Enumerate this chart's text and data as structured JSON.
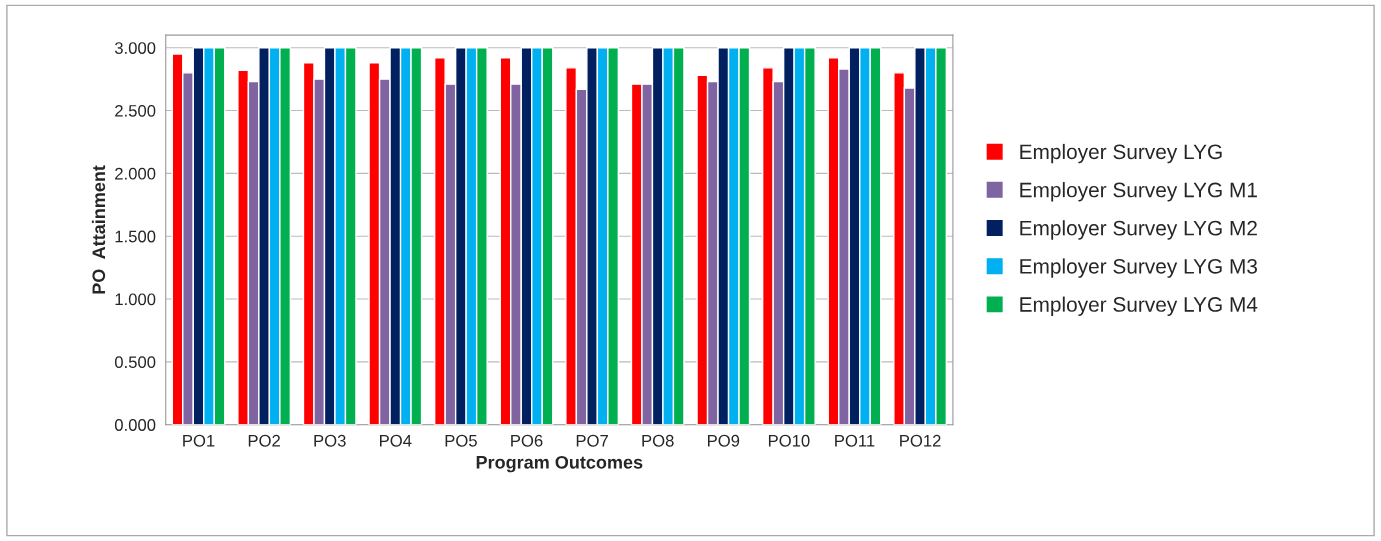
{
  "chart_data": {
    "type": "bar",
    "xlabel": "Program Outcomes",
    "ylabel": "PO  Attainment",
    "categories": [
      "PO1",
      "PO2",
      "PO3",
      "PO4",
      "PO5",
      "PO6",
      "PO7",
      "PO8",
      "PO9",
      "PO10",
      "PO11",
      "PO12"
    ],
    "series": [
      {
        "name": "Employer Survey LYG",
        "color": "#ff0000",
        "values": [
          2.95,
          2.82,
          2.88,
          2.88,
          2.92,
          2.92,
          2.84,
          2.71,
          2.78,
          2.84,
          2.92,
          2.8
        ]
      },
      {
        "name": "Employer Survey LYG M1",
        "color": "#8064a2",
        "values": [
          2.8,
          2.73,
          2.75,
          2.75,
          2.71,
          2.71,
          2.67,
          2.71,
          2.73,
          2.73,
          2.83,
          2.68
        ]
      },
      {
        "name": "Employer Survey LYG M2",
        "color": "#002060",
        "values": [
          3,
          3,
          3,
          3,
          3,
          3,
          3,
          3,
          3,
          3,
          3,
          3
        ]
      },
      {
        "name": "Employer Survey LYG M3",
        "color": "#00b0f0",
        "values": [
          3,
          3,
          3,
          3,
          3,
          3,
          3,
          3,
          3,
          3,
          3,
          3
        ]
      },
      {
        "name": "Employer Survey LYG M4",
        "color": "#00b050",
        "values": [
          3,
          3,
          3,
          3,
          3,
          3,
          3,
          3,
          3,
          3,
          3,
          3
        ]
      }
    ],
    "ylim": [
      0,
      3.1
    ],
    "yticks": [
      {
        "value": 0,
        "label": "0.000"
      },
      {
        "value": 0.5,
        "label": "0.500"
      },
      {
        "value": 1,
        "label": "1.000"
      },
      {
        "value": 1.5,
        "label": "1.500"
      },
      {
        "value": 2,
        "label": "2.000"
      },
      {
        "value": 2.5,
        "label": "2.500"
      },
      {
        "value": 3,
        "label": "3.000"
      }
    ],
    "grid": "y",
    "legend": "right"
  }
}
